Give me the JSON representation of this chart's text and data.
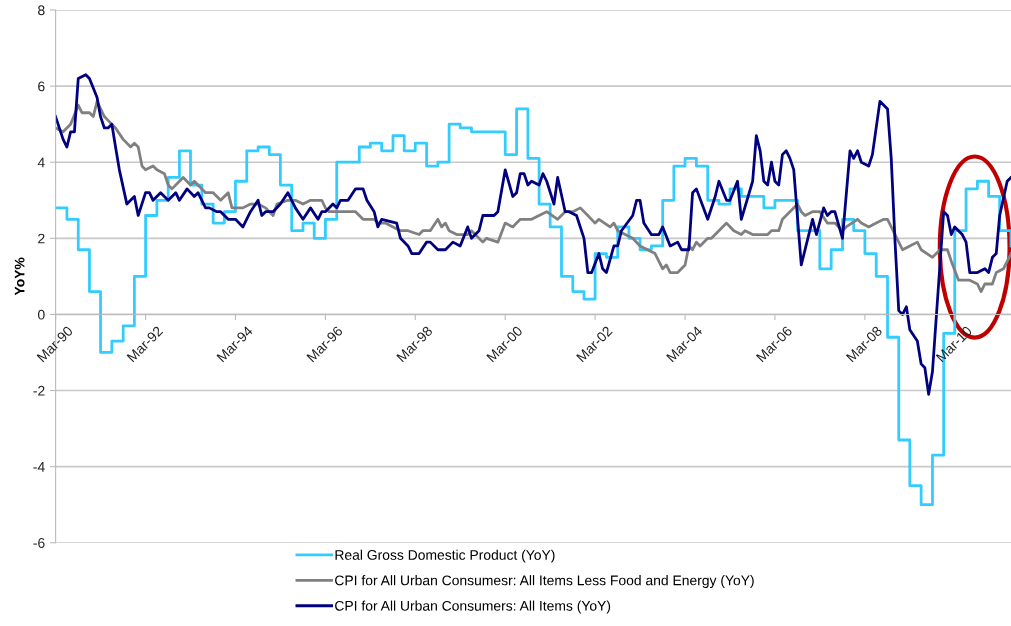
{
  "chart_data": {
    "type": "line",
    "ylabel": "YoY%",
    "xlim": [
      "1990-03",
      "2011-06"
    ],
    "ylim": [
      -6,
      8
    ],
    "yticks": [
      -6,
      -4,
      -2,
      0,
      2,
      4,
      6,
      8
    ],
    "xticks": [
      {
        "value": "1990-03",
        "label": "Mar-90"
      },
      {
        "value": "1992-03",
        "label": "Mar-92"
      },
      {
        "value": "1994-03",
        "label": "Mar-94"
      },
      {
        "value": "1996-03",
        "label": "Mar-96"
      },
      {
        "value": "1998-03",
        "label": "Mar-98"
      },
      {
        "value": "2000-03",
        "label": "Mar-00"
      },
      {
        "value": "2002-03",
        "label": "Mar-02"
      },
      {
        "value": "2004-03",
        "label": "Mar-04"
      },
      {
        "value": "2006-03",
        "label": "Mar-06"
      },
      {
        "value": "2008-03",
        "label": "Mar-08"
      },
      {
        "value": "2010-03",
        "label": "Mar-10"
      }
    ],
    "grid": "y",
    "legend": "bottom",
    "marker": "none",
    "line_style": "solid",
    "series": [
      {
        "name": "Real Gross Domestic Product (YoY)",
        "type": "step",
        "color": "#33ccff",
        "x": [
          "1990-03",
          "1990-06",
          "1990-09",
          "1990-12",
          "1991-03",
          "1991-06",
          "1991-09",
          "1991-12",
          "1992-03",
          "1992-06",
          "1992-09",
          "1992-12",
          "1993-03",
          "1993-06",
          "1993-09",
          "1993-12",
          "1994-03",
          "1994-06",
          "1994-09",
          "1994-12",
          "1995-03",
          "1995-06",
          "1995-09",
          "1995-12",
          "1996-03",
          "1996-06",
          "1996-09",
          "1996-12",
          "1997-03",
          "1997-06",
          "1997-09",
          "1997-12",
          "1998-03",
          "1998-06",
          "1998-09",
          "1998-12",
          "1999-03",
          "1999-06",
          "1999-09",
          "1999-12",
          "2000-03",
          "2000-06",
          "2000-09",
          "2000-12",
          "2001-03",
          "2001-06",
          "2001-09",
          "2001-12",
          "2002-03",
          "2002-06",
          "2002-09",
          "2002-12",
          "2003-03",
          "2003-06",
          "2003-09",
          "2003-12",
          "2004-03",
          "2004-06",
          "2004-09",
          "2004-12",
          "2005-03",
          "2005-06",
          "2005-09",
          "2005-12",
          "2006-03",
          "2006-06",
          "2006-09",
          "2006-12",
          "2007-03",
          "2007-06",
          "2007-09",
          "2007-12",
          "2008-03",
          "2008-06",
          "2008-09",
          "2008-12",
          "2009-03",
          "2009-06",
          "2009-09",
          "2009-12",
          "2010-03",
          "2010-06",
          "2010-09",
          "2010-12",
          "2011-03",
          "2011-06"
        ],
        "values": [
          2.8,
          2.5,
          1.7,
          0.6,
          -1.0,
          -0.7,
          -0.3,
          1.0,
          2.6,
          3.0,
          3.6,
          4.3,
          3.4,
          2.9,
          2.4,
          2.7,
          3.5,
          4.3,
          4.4,
          4.2,
          3.4,
          2.2,
          2.4,
          2.0,
          2.5,
          4.0,
          4.0,
          4.4,
          4.5,
          4.3,
          4.7,
          4.3,
          4.5,
          3.9,
          4.0,
          5.0,
          4.9,
          4.8,
          4.8,
          4.8,
          4.2,
          5.4,
          4.1,
          2.9,
          2.3,
          1.0,
          0.6,
          0.4,
          1.6,
          1.5,
          2.3,
          2.0,
          1.7,
          1.8,
          3.0,
          3.9,
          4.1,
          3.9,
          3.0,
          2.9,
          3.3,
          3.1,
          3.1,
          2.8,
          3.0,
          3.0,
          2.2,
          2.2,
          1.2,
          1.7,
          2.5,
          2.2,
          1.6,
          1.0,
          -0.6,
          -3.3,
          -4.5,
          -5.0,
          -3.7,
          -0.5,
          2.2,
          3.3,
          3.5,
          3.1,
          2.2,
          1.8
        ]
      },
      {
        "name": "CPI for All Urban Consumesr: All Items Less Food and Energy (YoY)",
        "type": "line",
        "color": "#808080",
        "x": [
          "1990-03",
          "1990-05",
          "1990-07",
          "1990-09",
          "1990-10",
          "1990-12",
          "1991-01",
          "1991-02",
          "1991-04",
          "1991-05",
          "1991-07",
          "1991-09",
          "1991-11",
          "1991-12",
          "1992-01",
          "1992-02",
          "1992-03",
          "1992-05",
          "1992-06",
          "1992-08",
          "1992-09",
          "1992-10",
          "1992-12",
          "1993-01",
          "1993-03",
          "1993-04",
          "1993-05",
          "1993-07",
          "1993-09",
          "1993-11",
          "1994-01",
          "1994-02",
          "1994-03",
          "1994-05",
          "1994-07",
          "1994-09",
          "1994-11",
          "1995-01",
          "1995-02",
          "1995-05",
          "1995-07",
          "1995-09",
          "1995-11",
          "1996-02",
          "1996-03",
          "1996-04",
          "1996-07",
          "1996-09",
          "1996-11",
          "1997-01",
          "1997-04",
          "1997-05",
          "1997-07",
          "1997-09",
          "1997-11",
          "1998-01",
          "1998-04",
          "1998-05",
          "1998-07",
          "1998-09",
          "1998-10",
          "1998-11",
          "1998-12",
          "1999-02",
          "1999-05",
          "1999-06",
          "1999-09",
          "1999-10",
          "2000-01",
          "2000-03",
          "2000-05",
          "2000-07",
          "2000-09",
          "2000-10",
          "2000-12",
          "2001-02",
          "2001-05",
          "2001-07",
          "2001-09",
          "2001-11",
          "2002-01",
          "2002-03",
          "2002-04",
          "2002-07",
          "2002-08",
          "2002-09",
          "2002-11",
          "2003-01",
          "2003-03",
          "2003-05",
          "2003-07",
          "2003-09",
          "2003-10",
          "2003-11",
          "2004-01",
          "2004-03",
          "2004-04",
          "2004-05",
          "2004-06",
          "2004-07",
          "2004-09",
          "2004-10",
          "2004-12",
          "2005-02",
          "2005-04",
          "2005-06",
          "2005-07",
          "2005-09",
          "2005-11",
          "2006-01",
          "2006-02",
          "2006-04",
          "2006-05",
          "2006-07",
          "2006-09",
          "2006-10",
          "2006-11",
          "2007-01",
          "2007-03",
          "2007-05",
          "2007-07",
          "2007-09",
          "2007-10",
          "2008-01",
          "2008-02",
          "2008-04",
          "2008-06",
          "2008-08",
          "2008-09",
          "2008-11",
          "2009-01",
          "2009-03",
          "2009-05",
          "2009-06",
          "2009-09",
          "2009-11",
          "2010-01",
          "2010-02",
          "2010-04",
          "2010-07",
          "2010-09",
          "2010-10",
          "2010-11",
          "2011-01",
          "2011-02",
          "2011-04",
          "2011-06"
        ],
        "values": [
          4.9,
          4.8,
          5.0,
          5.5,
          5.3,
          5.3,
          5.2,
          5.6,
          5.2,
          5.1,
          4.9,
          4.6,
          4.4,
          4.5,
          4.4,
          3.9,
          3.8,
          3.9,
          3.8,
          3.7,
          3.4,
          3.3,
          3.5,
          3.6,
          3.4,
          3.5,
          3.4,
          3.2,
          3.2,
          3.0,
          3.2,
          2.8,
          2.8,
          2.8,
          2.9,
          2.9,
          2.8,
          2.6,
          2.9,
          3.0,
          3.0,
          2.9,
          3.0,
          3.0,
          2.8,
          2.7,
          2.7,
          2.7,
          2.7,
          2.5,
          2.5,
          2.4,
          2.4,
          2.3,
          2.2,
          2.2,
          2.1,
          2.2,
          2.2,
          2.5,
          2.3,
          2.4,
          2.2,
          2.1,
          2.1,
          2.2,
          1.9,
          2.0,
          1.9,
          2.4,
          2.3,
          2.5,
          2.5,
          2.5,
          2.6,
          2.7,
          2.5,
          2.7,
          2.7,
          2.8,
          2.6,
          2.4,
          2.5,
          2.3,
          2.4,
          2.2,
          2.1,
          2.0,
          1.8,
          1.7,
          1.6,
          1.2,
          1.3,
          1.1,
          1.1,
          1.3,
          1.8,
          1.7,
          1.9,
          1.8,
          2.0,
          2.0,
          2.2,
          2.4,
          2.2,
          2.1,
          2.2,
          2.1,
          2.1,
          2.1,
          2.2,
          2.2,
          2.5,
          2.7,
          2.9,
          2.7,
          2.6,
          2.7,
          2.7,
          2.4,
          2.4,
          2.2,
          2.3,
          2.5,
          2.4,
          2.3,
          2.4,
          2.5,
          2.5,
          2.1,
          1.7,
          1.8,
          1.9,
          1.7,
          1.5,
          1.7,
          1.7,
          1.4,
          0.9,
          0.9,
          0.8,
          0.6,
          0.8,
          0.8,
          1.1,
          1.2,
          1.6
        ]
      },
      {
        "name": "CPI for All Urban Consumers: All Items (YoY)",
        "type": "line",
        "color": "#000080",
        "x": [
          "1990-03",
          "1990-05",
          "1990-06",
          "1990-07",
          "1990-08",
          "1990-09",
          "1990-11",
          "1990-12",
          "1991-02",
          "1991-03",
          "1991-04",
          "1991-05",
          "1991-06",
          "1991-07",
          "1991-08",
          "1991-10",
          "1991-12",
          "1992-01",
          "1992-03",
          "1992-04",
          "1992-05",
          "1992-07",
          "1992-09",
          "1992-11",
          "1992-12",
          "1993-02",
          "1993-04",
          "1993-05",
          "1993-07",
          "1993-08",
          "1993-10",
          "1993-11",
          "1994-01",
          "1994-03",
          "1994-05",
          "1994-07",
          "1994-09",
          "1994-10",
          "1994-11",
          "1995-01",
          "1995-03",
          "1995-05",
          "1995-07",
          "1995-09",
          "1995-11",
          "1996-01",
          "1996-02",
          "1996-03",
          "1996-05",
          "1996-06",
          "1996-07",
          "1996-09",
          "1996-11",
          "1997-01",
          "1997-02",
          "1997-04",
          "1997-05",
          "1997-06",
          "1997-10",
          "1997-11",
          "1998-01",
          "1998-02",
          "1998-04",
          "1998-06",
          "1998-07",
          "1998-09",
          "1998-11",
          "1999-01",
          "1999-03",
          "1999-05",
          "1999-06",
          "1999-08",
          "1999-09",
          "1999-12",
          "2000-01",
          "2000-03",
          "2000-05",
          "2000-06",
          "2000-07",
          "2000-08",
          "2000-09",
          "2000-10",
          "2000-12",
          "2001-01",
          "2001-02",
          "2001-04",
          "2001-05",
          "2001-07",
          "2001-08",
          "2001-10",
          "2001-12",
          "2002-01",
          "2002-02",
          "2002-04",
          "2002-05",
          "2002-06",
          "2002-08",
          "2002-09",
          "2002-10",
          "2003-01",
          "2003-02",
          "2003-03",
          "2003-04",
          "2003-06",
          "2003-08",
          "2003-09",
          "2003-11",
          "2004-01",
          "2004-02",
          "2004-04",
          "2004-05",
          "2004-06",
          "2004-09",
          "2004-11",
          "2004-12",
          "2005-02",
          "2005-03",
          "2005-05",
          "2005-06",
          "2005-09",
          "2005-10",
          "2005-11",
          "2005-12",
          "2006-01",
          "2006-02",
          "2006-03",
          "2006-04",
          "2006-05",
          "2006-06",
          "2006-07",
          "2006-08",
          "2006-10",
          "2007-01",
          "2007-02",
          "2007-04",
          "2007-05",
          "2007-06",
          "2007-07",
          "2007-09",
          "2007-11",
          "2007-12",
          "2008-01",
          "2008-02",
          "2008-04",
          "2008-05",
          "2008-07",
          "2008-09",
          "2008-10",
          "2008-11",
          "2008-12",
          "2009-01",
          "2009-02",
          "2009-03",
          "2009-05",
          "2009-06",
          "2009-07",
          "2009-08",
          "2009-09",
          "2009-12",
          "2010-01",
          "2010-02",
          "2010-03",
          "2010-05",
          "2010-06",
          "2010-07",
          "2010-09",
          "2010-11",
          "2010-12",
          "2011-01",
          "2011-02",
          "2011-03",
          "2011-05",
          "2011-06"
        ],
        "values": [
          5.2,
          4.6,
          4.4,
          4.8,
          4.8,
          6.2,
          6.3,
          6.2,
          5.7,
          5.2,
          4.9,
          4.9,
          5.0,
          4.4,
          3.8,
          2.9,
          3.1,
          2.6,
          3.2,
          3.2,
          3.0,
          3.2,
          3.0,
          3.2,
          3.0,
          3.3,
          3.1,
          3.2,
          2.8,
          2.8,
          2.7,
          2.7,
          2.5,
          2.5,
          2.3,
          2.7,
          3.0,
          2.6,
          2.7,
          2.7,
          2.9,
          3.2,
          2.8,
          2.5,
          2.8,
          2.5,
          2.7,
          2.7,
          2.9,
          2.8,
          3.0,
          3.0,
          3.3,
          3.3,
          3.0,
          2.7,
          2.3,
          2.5,
          2.4,
          2.0,
          1.8,
          1.6,
          1.6,
          1.9,
          1.9,
          1.7,
          1.7,
          1.9,
          1.8,
          2.3,
          2.0,
          2.2,
          2.6,
          2.6,
          2.7,
          3.8,
          3.1,
          3.2,
          3.7,
          3.7,
          3.4,
          3.5,
          3.4,
          3.7,
          3.5,
          2.9,
          3.6,
          2.7,
          2.7,
          2.6,
          2.0,
          1.1,
          1.1,
          1.6,
          1.2,
          1.1,
          1.8,
          1.8,
          2.2,
          2.6,
          3.0,
          3.0,
          2.4,
          2.1,
          2.1,
          2.3,
          1.8,
          1.9,
          1.7,
          1.7,
          3.2,
          3.3,
          2.5,
          3.1,
          3.5,
          3.0,
          3.0,
          3.5,
          2.5,
          3.5,
          4.7,
          4.3,
          3.5,
          3.4,
          4.0,
          3.5,
          3.4,
          4.2,
          4.3,
          4.1,
          3.8,
          1.3,
          2.5,
          2.1,
          2.8,
          2.6,
          2.7,
          2.7,
          2.0,
          4.3,
          4.1,
          4.3,
          4.0,
          3.9,
          4.2,
          5.6,
          5.4,
          4.1,
          1.9,
          0.1,
          0.0,
          0.2,
          -0.4,
          -0.7,
          -1.3,
          -1.4,
          -2.1,
          -1.5,
          2.7,
          2.6,
          2.1,
          2.3,
          2.1,
          1.9,
          1.1,
          1.1,
          1.2,
          1.1,
          1.5,
          1.6,
          2.6,
          3.5,
          3.6
        ]
      }
    ]
  }
}
